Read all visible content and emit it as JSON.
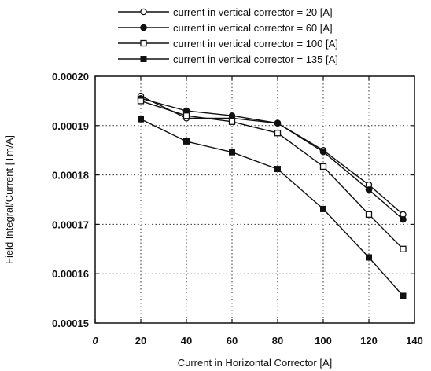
{
  "chart_data": {
    "type": "line",
    "xlabel": "Current in Horizontal Corrector [A]",
    "ylabel": "Field Integral/Current [Tm/A]",
    "xlim": [
      0,
      140
    ],
    "ylim": [
      0.00015,
      0.0002
    ],
    "x_ticks": [
      "0",
      "20",
      "40",
      "60",
      "80",
      "100",
      "120",
      "140"
    ],
    "y_ticks": [
      "0.00015",
      "0.00016",
      "0.00017",
      "0.00018",
      "0.00019",
      "0.00020"
    ],
    "x_tick_values": [
      0,
      20,
      40,
      60,
      80,
      100,
      120,
      140
    ],
    "y_tick_values": [
      0.00015,
      0.00016,
      0.00017,
      0.00018,
      0.00019,
      0.0002
    ],
    "grid": "dotted",
    "legend_position": "top",
    "x": [
      20,
      40,
      60,
      80,
      100,
      120,
      135
    ],
    "series": [
      {
        "name": "current in vertical corrector = 20 [A]",
        "marker": "open-circle",
        "values": [
          0.000196,
          0.0001915,
          0.0001915,
          0.0001905,
          0.000185,
          0.000178,
          0.000172
        ]
      },
      {
        "name": "current in vertical corrector = 60 [A]",
        "marker": "filled-circle",
        "values": [
          0.0001955,
          0.000193,
          0.000192,
          0.0001905,
          0.0001847,
          0.000177,
          0.000171
        ]
      },
      {
        "name": "current in vertical corrector = 100 [A]",
        "marker": "open-square",
        "values": [
          0.000195,
          0.000192,
          0.0001908,
          0.0001885,
          0.0001817,
          0.000172,
          0.000165
        ]
      },
      {
        "name": "current in vertical corrector = 135 [A]",
        "marker": "filled-square",
        "values": [
          0.0001913,
          0.0001868,
          0.0001846,
          0.0001812,
          0.0001731,
          0.0001633,
          0.0001555
        ]
      }
    ]
  }
}
